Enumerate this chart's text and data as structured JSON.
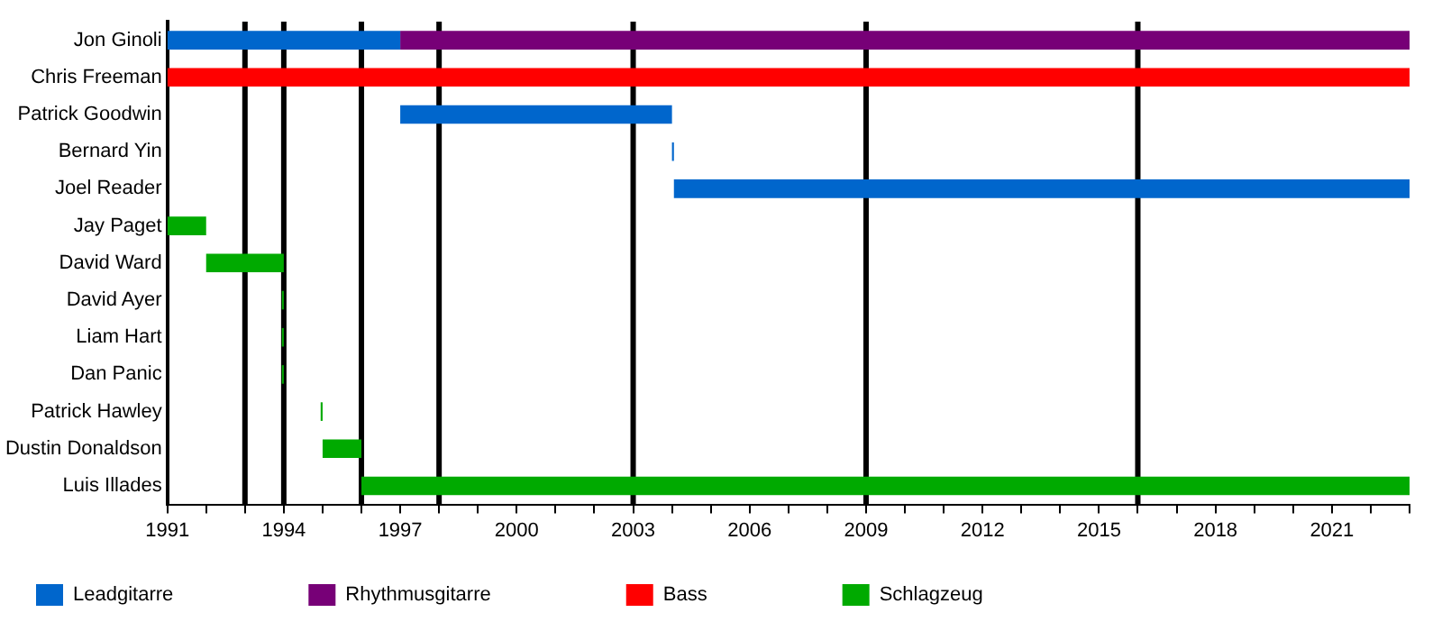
{
  "chart_data": {
    "type": "bar",
    "orientation": "horizontal",
    "categories": [
      "Jon Ginoli",
      "Chris Freeman",
      "Patrick Goodwin",
      "Bernard Yin",
      "Joel Reader",
      "Jay Paget",
      "David Ward",
      "David Ayer",
      "Liam Hart",
      "Dan Panic",
      "Patrick Hawley",
      "Dustin Donaldson",
      "Luis Illades"
    ],
    "series": [
      {
        "name": "Leadgitarre",
        "color": "#0066cc",
        "base": [
          1991,
          null,
          1997,
          2004,
          2004.05,
          null,
          null,
          null,
          null,
          null,
          null,
          null,
          null
        ],
        "values": [
          6,
          null,
          7,
          0.05,
          18.95,
          null,
          null,
          null,
          null,
          null,
          null,
          null,
          null
        ]
      },
      {
        "name": "Rhythmusgitarre",
        "color": "#770077",
        "base": [
          1997,
          null,
          null,
          null,
          null,
          null,
          null,
          null,
          null,
          null,
          null,
          null,
          null
        ],
        "values": [
          26,
          null,
          null,
          null,
          null,
          null,
          null,
          null,
          null,
          null,
          null,
          null,
          null
        ]
      },
      {
        "name": "Bass",
        "color": "#ff0000",
        "base": [
          null,
          1991,
          null,
          null,
          null,
          null,
          null,
          null,
          null,
          null,
          null,
          null,
          null
        ],
        "values": [
          null,
          32,
          null,
          null,
          null,
          null,
          null,
          null,
          null,
          null,
          null,
          null,
          null
        ]
      },
      {
        "name": "Schlagzeug",
        "color": "#00aa00",
        "base": [
          null,
          null,
          null,
          null,
          null,
          1991,
          1992,
          1993.95,
          1993.95,
          1993.95,
          1994.95,
          1995,
          1996
        ],
        "values": [
          null,
          null,
          null,
          null,
          null,
          1,
          2,
          0.05,
          0.05,
          0.05,
          0.05,
          1,
          27
        ]
      }
    ],
    "xlim": [
      1991,
      2023
    ],
    "xticks": [
      1991,
      {
        "value": 1992,
        "label": null
      },
      {
        "value": 1993,
        "label": null
      },
      1994,
      {
        "value": 1995,
        "label": null
      },
      {
        "value": 1996,
        "label": null
      },
      1997,
      {
        "value": 1998,
        "label": null
      },
      {
        "value": 1999,
        "label": null
      },
      2000,
      {
        "value": 2001,
        "label": null
      },
      {
        "value": 2002,
        "label": null
      },
      2003,
      {
        "value": 2004,
        "label": null
      },
      {
        "value": 2005,
        "label": null
      },
      2006,
      {
        "value": 2007,
        "label": null
      },
      {
        "value": 2008,
        "label": null
      },
      2009,
      {
        "value": 2010,
        "label": null
      },
      {
        "value": 2011,
        "label": null
      },
      2012,
      {
        "value": 2013,
        "label": null
      },
      {
        "value": 2014,
        "label": null
      },
      2015,
      {
        "value": 2016,
        "label": null
      },
      {
        "value": 2017,
        "label": null
      },
      2018,
      {
        "value": 2019,
        "label": null
      },
      {
        "value": 2020,
        "label": null
      },
      2021,
      {
        "value": 2022,
        "label": null
      },
      {
        "value": 2023,
        "label": null
      }
    ],
    "ref_lines": [
      {
        "axis": "x",
        "value": 1993,
        "color": "#000000"
      },
      {
        "axis": "x",
        "value": 1994,
        "color": "#000000"
      },
      {
        "axis": "x",
        "value": 1996,
        "color": "#000000"
      },
      {
        "axis": "x",
        "value": 1998,
        "color": "#000000"
      },
      {
        "axis": "x",
        "value": 2003,
        "color": "#000000"
      },
      {
        "axis": "x",
        "value": 2009,
        "color": "#000000"
      },
      {
        "axis": "x",
        "value": 2016,
        "color": "#000000"
      }
    ],
    "grid": false,
    "legend": "bottom"
  }
}
